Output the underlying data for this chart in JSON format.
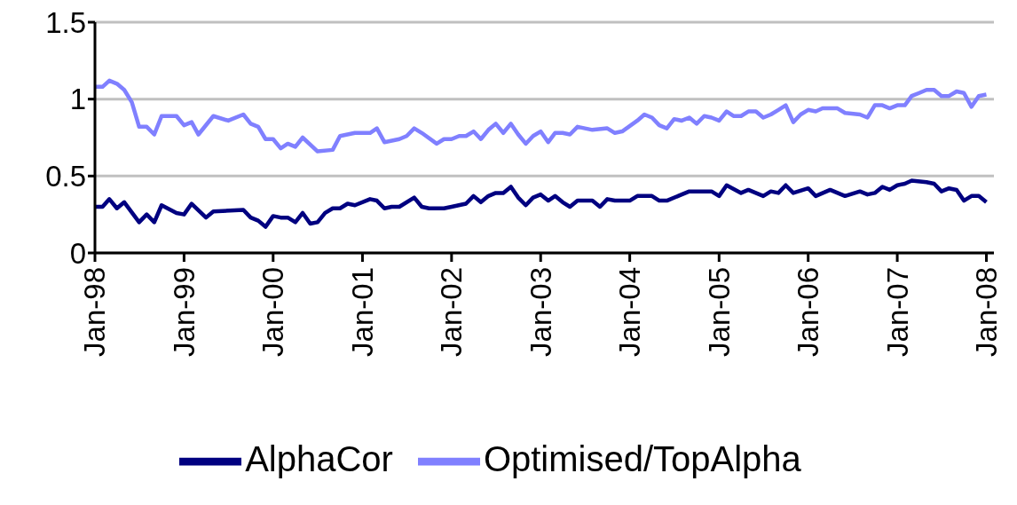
{
  "chart_data": {
    "type": "line",
    "marker": "none",
    "grid": "y",
    "legend": "bottom",
    "xlim": [
      "1998-01",
      "2008-02"
    ],
    "xticks": [
      {
        "value": "1998-01",
        "label": "Jan-98"
      },
      {
        "value": "1999-01",
        "label": "Jan-99"
      },
      {
        "value": "2000-01",
        "label": "Jan-00"
      },
      {
        "value": "2001-01",
        "label": "Jan-01"
      },
      {
        "value": "2002-01",
        "label": "Jan-02"
      },
      {
        "value": "2003-01",
        "label": "Jan-03"
      },
      {
        "value": "2004-01",
        "label": "Jan-04"
      },
      {
        "value": "2005-01",
        "label": "Jan-05"
      },
      {
        "value": "2006-01",
        "label": "Jan-06"
      },
      {
        "value": "2007-01",
        "label": "Jan-07"
      },
      {
        "value": "2008-01",
        "label": "Jan-08"
      }
    ],
    "ylim": [
      0,
      1.5
    ],
    "yticks": [
      0,
      0.5,
      1,
      1.5
    ],
    "series": [
      {
        "name": "AlphaCor",
        "color": "#000080",
        "x": [
          "1998-01",
          "1998-02",
          "1998-03",
          "1998-04",
          "1998-05",
          "1998-07",
          "1998-08",
          "1998-09",
          "1998-10",
          "1998-12",
          "1999-01",
          "1999-02",
          "1999-04",
          "1999-05",
          "1999-09",
          "1999-10",
          "1999-11",
          "1999-12",
          "2000-01",
          "2000-02",
          "2000-03",
          "2000-04",
          "2000-05",
          "2000-06",
          "2000-07",
          "2000-08",
          "2000-09",
          "2000-10",
          "2000-11",
          "2000-12",
          "2001-02",
          "2001-03",
          "2001-04",
          "2001-05",
          "2001-06",
          "2001-08",
          "2001-09",
          "2001-10",
          "2001-12",
          "2002-01",
          "2002-03",
          "2002-04",
          "2002-05",
          "2002-06",
          "2002-07",
          "2002-08",
          "2002-09",
          "2002-10",
          "2002-11",
          "2002-12",
          "2003-01",
          "2003-02",
          "2003-03",
          "2003-04",
          "2003-05",
          "2003-06",
          "2003-08",
          "2003-09",
          "2003-10",
          "2003-11",
          "2004-01",
          "2004-02",
          "2004-04",
          "2004-05",
          "2004-06",
          "2004-08",
          "2004-09",
          "2004-10",
          "2004-12",
          "2005-01",
          "2005-02",
          "2005-04",
          "2005-05",
          "2005-07",
          "2005-08",
          "2005-09",
          "2005-10",
          "2005-11",
          "2006-01",
          "2006-02",
          "2006-04",
          "2006-06",
          "2006-08",
          "2006-09",
          "2006-10",
          "2006-11",
          "2006-12",
          "2007-01",
          "2007-02",
          "2007-03",
          "2007-05",
          "2007-06",
          "2007-07",
          "2007-08",
          "2007-09",
          "2007-10",
          "2007-11",
          "2007-12",
          "2008-01"
        ],
        "values": [
          0.3,
          0.3,
          0.35,
          0.29,
          0.33,
          0.2,
          0.25,
          0.2,
          0.31,
          0.26,
          0.25,
          0.32,
          0.23,
          0.27,
          0.28,
          0.23,
          0.21,
          0.17,
          0.24,
          0.23,
          0.23,
          0.2,
          0.26,
          0.19,
          0.2,
          0.26,
          0.29,
          0.29,
          0.32,
          0.31,
          0.35,
          0.34,
          0.29,
          0.3,
          0.3,
          0.36,
          0.3,
          0.29,
          0.29,
          0.3,
          0.32,
          0.37,
          0.33,
          0.37,
          0.39,
          0.39,
          0.43,
          0.36,
          0.31,
          0.36,
          0.38,
          0.34,
          0.37,
          0.33,
          0.3,
          0.34,
          0.34,
          0.3,
          0.35,
          0.34,
          0.34,
          0.37,
          0.37,
          0.34,
          0.34,
          0.38,
          0.4,
          0.4,
          0.4,
          0.37,
          0.44,
          0.39,
          0.41,
          0.37,
          0.4,
          0.39,
          0.44,
          0.39,
          0.42,
          0.37,
          0.41,
          0.37,
          0.4,
          0.38,
          0.39,
          0.43,
          0.41,
          0.44,
          0.45,
          0.47,
          0.46,
          0.45,
          0.4,
          0.42,
          0.41,
          0.34,
          0.37,
          0.37,
          0.33
        ]
      },
      {
        "name": "Optimised/TopAlpha",
        "color": "#8080ff",
        "x": [
          "1998-01",
          "1998-02",
          "1998-03",
          "1998-04",
          "1998-05",
          "1998-06",
          "1998-07",
          "1998-08",
          "1998-09",
          "1998-10",
          "1998-12",
          "1999-01",
          "1999-02",
          "1999-03",
          "1999-05",
          "1999-07",
          "1999-09",
          "1999-10",
          "1999-11",
          "1999-12",
          "2000-01",
          "2000-02",
          "2000-03",
          "2000-04",
          "2000-05",
          "2000-07",
          "2000-09",
          "2000-10",
          "2000-12",
          "2001-02",
          "2001-03",
          "2001-04",
          "2001-06",
          "2001-07",
          "2001-08",
          "2001-09",
          "2001-11",
          "2001-12",
          "2002-01",
          "2002-02",
          "2002-03",
          "2002-04",
          "2002-05",
          "2002-06",
          "2002-07",
          "2002-08",
          "2002-09",
          "2002-10",
          "2002-11",
          "2002-12",
          "2003-01",
          "2003-02",
          "2003-03",
          "2003-04",
          "2003-05",
          "2003-06",
          "2003-08",
          "2003-10",
          "2003-11",
          "2003-12",
          "2004-02",
          "2004-03",
          "2004-04",
          "2004-05",
          "2004-06",
          "2004-07",
          "2004-08",
          "2004-09",
          "2004-10",
          "2004-11",
          "2004-12",
          "2005-01",
          "2005-02",
          "2005-03",
          "2005-04",
          "2005-05",
          "2005-06",
          "2005-07",
          "2005-08",
          "2005-09",
          "2005-10",
          "2005-11",
          "2005-12",
          "2006-01",
          "2006-02",
          "2006-03",
          "2006-05",
          "2006-06",
          "2006-08",
          "2006-09",
          "2006-10",
          "2006-11",
          "2006-12",
          "2007-01",
          "2007-02",
          "2007-03",
          "2007-04",
          "2007-05",
          "2007-06",
          "2007-07",
          "2007-08",
          "2007-09",
          "2007-10",
          "2007-11",
          "2007-12",
          "2008-01"
        ],
        "values": [
          1.08,
          1.08,
          1.12,
          1.1,
          1.06,
          0.98,
          0.82,
          0.82,
          0.77,
          0.89,
          0.89,
          0.83,
          0.85,
          0.77,
          0.89,
          0.86,
          0.9,
          0.84,
          0.82,
          0.74,
          0.74,
          0.68,
          0.71,
          0.69,
          0.75,
          0.66,
          0.67,
          0.76,
          0.78,
          0.78,
          0.81,
          0.72,
          0.74,
          0.76,
          0.81,
          0.78,
          0.71,
          0.74,
          0.74,
          0.76,
          0.76,
          0.79,
          0.74,
          0.8,
          0.84,
          0.78,
          0.84,
          0.77,
          0.71,
          0.76,
          0.79,
          0.72,
          0.78,
          0.78,
          0.77,
          0.82,
          0.8,
          0.81,
          0.78,
          0.79,
          0.86,
          0.9,
          0.88,
          0.83,
          0.81,
          0.87,
          0.86,
          0.88,
          0.84,
          0.89,
          0.88,
          0.86,
          0.92,
          0.89,
          0.89,
          0.92,
          0.92,
          0.88,
          0.9,
          0.93,
          0.96,
          0.85,
          0.9,
          0.93,
          0.92,
          0.94,
          0.94,
          0.91,
          0.9,
          0.88,
          0.96,
          0.96,
          0.94,
          0.96,
          0.96,
          1.02,
          1.04,
          1.06,
          1.06,
          1.02,
          1.02,
          1.05,
          1.04,
          0.95,
          1.02,
          1.03
        ]
      }
    ]
  }
}
